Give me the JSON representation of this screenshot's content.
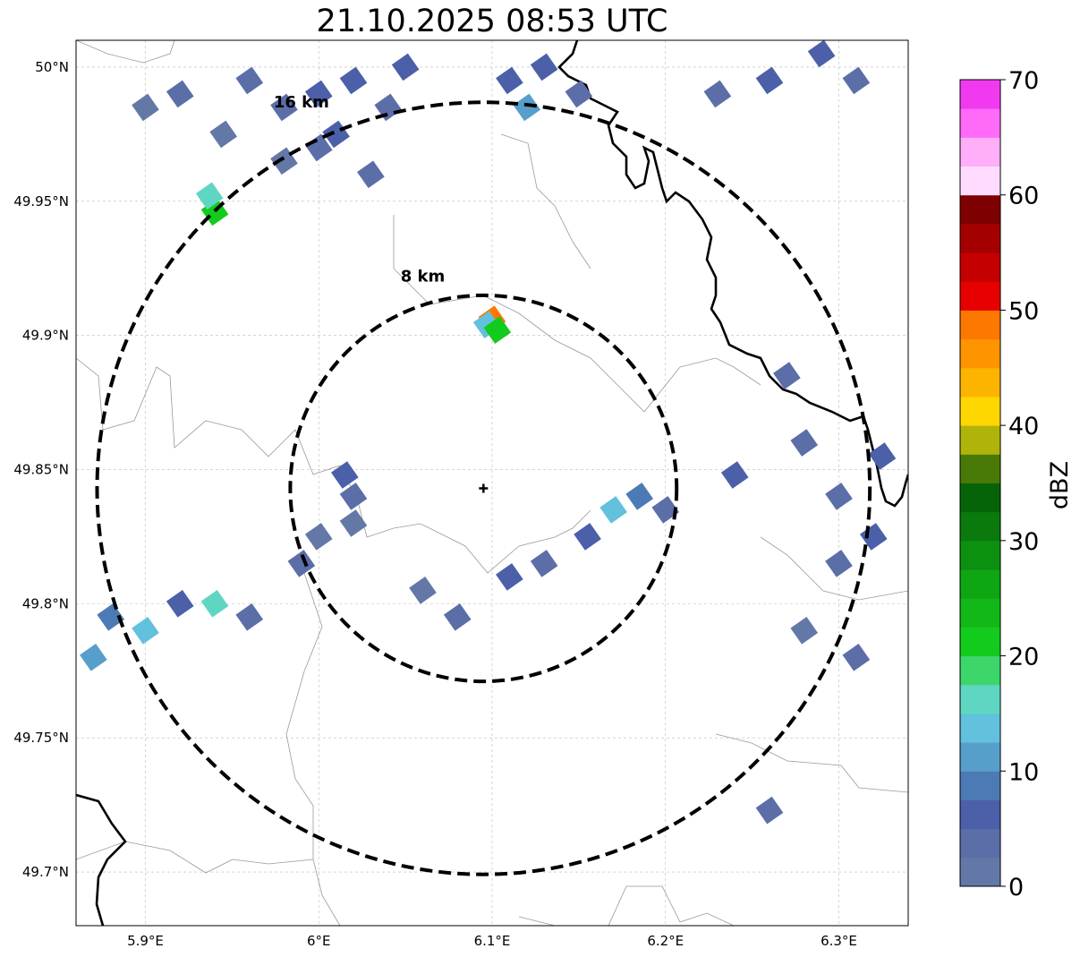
{
  "title": "21.10.2025 08:53 UTC",
  "map": {
    "lon_range": [
      5.86,
      6.34
    ],
    "lat_range": [
      49.68,
      50.01
    ],
    "lon_ticks": [
      {
        "value": 5.9,
        "label": "5.9°E"
      },
      {
        "value": 6.0,
        "label": "6°E"
      },
      {
        "value": 6.1,
        "label": "6.1°E"
      },
      {
        "value": 6.2,
        "label": "6.2°E"
      },
      {
        "value": 6.3,
        "label": "6.3°E"
      }
    ],
    "lat_ticks": [
      {
        "value": 50.0,
        "label": "50°N"
      },
      {
        "value": 49.95,
        "label": "49.95°N"
      },
      {
        "value": 49.9,
        "label": "49.9°N"
      },
      {
        "value": 49.85,
        "label": "49.85°N"
      },
      {
        "value": 49.8,
        "label": "49.8°N"
      },
      {
        "value": 49.75,
        "label": "49.75°N"
      },
      {
        "value": 49.7,
        "label": "49.7°N"
      }
    ],
    "grid": true,
    "radar_center": {
      "lon": 6.095,
      "lat": 49.843
    },
    "range_rings": [
      {
        "radius_km": 8,
        "label": "8 km",
        "label_lon": 6.06,
        "label_lat": 49.922
      },
      {
        "radius_km": 16,
        "label": "16 km",
        "label_lon": 5.99,
        "label_lat": 49.987
      }
    ],
    "echo_cells": [
      {
        "lon": 5.9,
        "lat": 49.985,
        "dbz": 2
      },
      {
        "lon": 5.92,
        "lat": 49.99,
        "dbz": 3
      },
      {
        "lon": 5.945,
        "lat": 49.975,
        "dbz": 2
      },
      {
        "lon": 5.96,
        "lat": 49.995,
        "dbz": 4
      },
      {
        "lon": 5.98,
        "lat": 49.985,
        "dbz": 3
      },
      {
        "lon": 6.0,
        "lat": 49.99,
        "dbz": 5
      },
      {
        "lon": 6.02,
        "lat": 49.995,
        "dbz": 6
      },
      {
        "lon": 6.04,
        "lat": 49.985,
        "dbz": 4
      },
      {
        "lon": 6.0,
        "lat": 49.97,
        "dbz": 3
      },
      {
        "lon": 5.98,
        "lat": 49.965,
        "dbz": 2
      },
      {
        "lon": 6.01,
        "lat": 49.975,
        "dbz": 6
      },
      {
        "lon": 6.05,
        "lat": 50.0,
        "dbz": 5
      },
      {
        "lon": 6.03,
        "lat": 49.96,
        "dbz": 3
      },
      {
        "lon": 6.11,
        "lat": 49.995,
        "dbz": 7
      },
      {
        "lon": 6.13,
        "lat": 50.0,
        "dbz": 5
      },
      {
        "lon": 6.12,
        "lat": 49.985,
        "dbz": 10
      },
      {
        "lon": 6.15,
        "lat": 49.99,
        "dbz": 4
      },
      {
        "lon": 6.23,
        "lat": 49.99,
        "dbz": 4
      },
      {
        "lon": 6.26,
        "lat": 49.995,
        "dbz": 6
      },
      {
        "lon": 6.29,
        "lat": 50.005,
        "dbz": 5
      },
      {
        "lon": 6.31,
        "lat": 49.995,
        "dbz": 3
      },
      {
        "lon": 5.94,
        "lat": 49.946,
        "dbz": 22
      },
      {
        "lon": 5.937,
        "lat": 49.952,
        "dbz": 17
      },
      {
        "lon": 6.1,
        "lat": 49.906,
        "dbz": 48
      },
      {
        "lon": 6.097,
        "lat": 49.904,
        "dbz": 13
      },
      {
        "lon": 6.103,
        "lat": 49.902,
        "dbz": 20
      },
      {
        "lon": 5.88,
        "lat": 49.795,
        "dbz": 8
      },
      {
        "lon": 5.9,
        "lat": 49.79,
        "dbz": 13
      },
      {
        "lon": 5.92,
        "lat": 49.8,
        "dbz": 6
      },
      {
        "lon": 5.94,
        "lat": 49.8,
        "dbz": 17
      },
      {
        "lon": 5.96,
        "lat": 49.795,
        "dbz": 4
      },
      {
        "lon": 5.99,
        "lat": 49.815,
        "dbz": 3
      },
      {
        "lon": 5.87,
        "lat": 49.78,
        "dbz": 10
      },
      {
        "lon": 6.015,
        "lat": 49.848,
        "dbz": 6
      },
      {
        "lon": 6.02,
        "lat": 49.84,
        "dbz": 3
      },
      {
        "lon": 6.02,
        "lat": 49.83,
        "dbz": 2
      },
      {
        "lon": 6.0,
        "lat": 49.825,
        "dbz": 2
      },
      {
        "lon": 6.06,
        "lat": 49.805,
        "dbz": 2
      },
      {
        "lon": 6.08,
        "lat": 49.795,
        "dbz": 3
      },
      {
        "lon": 6.11,
        "lat": 49.81,
        "dbz": 6
      },
      {
        "lon": 6.13,
        "lat": 49.815,
        "dbz": 4
      },
      {
        "lon": 6.155,
        "lat": 49.825,
        "dbz": 5
      },
      {
        "lon": 6.17,
        "lat": 49.835,
        "dbz": 13
      },
      {
        "lon": 6.185,
        "lat": 49.84,
        "dbz": 8
      },
      {
        "lon": 6.2,
        "lat": 49.835,
        "dbz": 4
      },
      {
        "lon": 6.24,
        "lat": 49.848,
        "dbz": 5
      },
      {
        "lon": 6.28,
        "lat": 49.86,
        "dbz": 3
      },
      {
        "lon": 6.3,
        "lat": 49.84,
        "dbz": 4
      },
      {
        "lon": 6.32,
        "lat": 49.825,
        "dbz": 6
      },
      {
        "lon": 6.3,
        "lat": 49.815,
        "dbz": 3
      },
      {
        "lon": 6.325,
        "lat": 49.855,
        "dbz": 5
      },
      {
        "lon": 6.28,
        "lat": 49.79,
        "dbz": 2
      },
      {
        "lon": 6.31,
        "lat": 49.78,
        "dbz": 3
      },
      {
        "lon": 6.26,
        "lat": 49.723,
        "dbz": 4
      },
      {
        "lon": 6.27,
        "lat": 49.885,
        "dbz": 3
      }
    ]
  },
  "colorbar": {
    "label": "dBZ",
    "min": 0,
    "max": 70,
    "step": 2.5,
    "ticks": [
      {
        "value": 0,
        "label": "0"
      },
      {
        "value": 10,
        "label": "10"
      },
      {
        "value": 20,
        "label": "20"
      },
      {
        "value": 30,
        "label": "30"
      },
      {
        "value": 40,
        "label": "40"
      },
      {
        "value": 50,
        "label": "50"
      },
      {
        "value": 60,
        "label": "60"
      },
      {
        "value": 70,
        "label": "70"
      }
    ],
    "colors": [
      "#6478a8",
      "#5b6ea8",
      "#4b60a8",
      "#4c7ab4",
      "#569fcb",
      "#62c1dc",
      "#5fd6c2",
      "#3dd66b",
      "#13cb1c",
      "#12b817",
      "#0fa614",
      "#0c9010",
      "#0a7a0d",
      "#066408",
      "#497a08",
      "#b0b40a",
      "#fed600",
      "#fdb400",
      "#fd9400",
      "#fd7800",
      "#e60000",
      "#c50000",
      "#a50000",
      "#7e0000",
      "#ffdcff",
      "#ffaefa",
      "#ff6af8",
      "#f13af0"
    ]
  }
}
